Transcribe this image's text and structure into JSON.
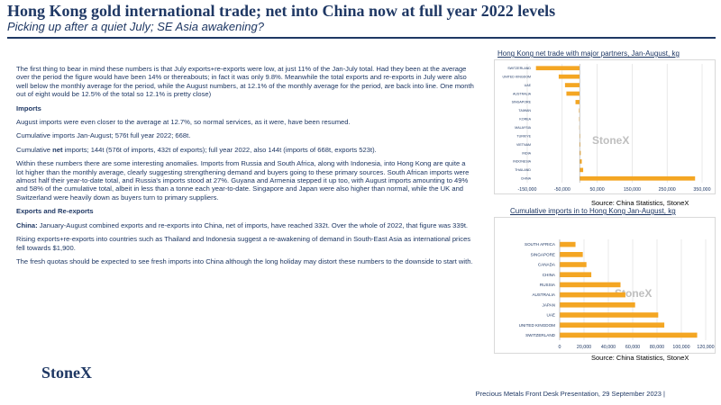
{
  "header": {
    "title": "Hong Kong gold international trade; net into China now at full year 2022 levels",
    "subtitle": "Picking up after a quiet July; SE Asia awakening?"
  },
  "body": {
    "p1": "The first thing to bear in mind these numbers is that July exports+re-exports were low, at just 11% of the Jan-July total.  Had they been at the average over the period the figure would have been 14% or thereabouts; in fact it was only 9.8%.  Meanwhile the total exports and re-exports in July were also well below the monthly average for the period, while the August numbers, at 12.1% of the monthly average for the period, are back into line.  One month out of eight would be 12.5% of the total so 12.1% is pretty close)",
    "imports_heading": "Imports",
    "p2": "August imports were even closer to the average at 12.7%, so normal services, as it were, have been resumed.",
    "p3": "Cumulative imports Jan-August; 576t    full year 2022; 668t.",
    "p4_pre": "Cumulative ",
    "p4_bold": "net",
    "p4_post": " imports; 144t (576t of imports, 432t of exports); full year 2022, also 144t (imports of 668t, exports 523t).",
    "p5": "Within these numbers there are some interesting anomalies.  Imports from Russia and South Africa, along with Indonesia, into Hong Kong are quite a lot higher than the monthly average, clearly suggesting strengthening demand and buyers going to these primary sources.  South African imports were almost half their year-to-date total, and Russia's imports stood at 27%.  Guyana and Armenia stepped it up too, with August imports amounting to 49% and 58% of the cumulative total, albeit in less than a tonne each year-to-date.  Singapore and Japan were also higher than normal, while the UK and Switzerland were heavily down as buyers turn to primary suppliers.",
    "exports_heading": "Exports and Re-exports",
    "p6_bold": "China:",
    "p6_post": "  January-August combined exports and re-exports into China, net of imports, have reached 332t.  Over the whole of 2022, that figure was 339t.",
    "p7": "Rising exports+re-exports into countries such as Thailand and Indonesia suggest a re-awakening of demand in South-East Asia as international prices fell towards $1,900.",
    "p8": "The fresh quotas should be expected to see fresh imports into China although the long holiday may distort these numbers to the downside to start with."
  },
  "brand": "StoneX",
  "footer": "Precious Metals Front Desk Presentation, 29 September 2023 |",
  "chart1": {
    "title": "Hong Kong net trade with major partners, Jan-August, kg",
    "source": "Source: China Statistics, StoneX",
    "watermark": "StoneX",
    "bar_color": "#f4a623"
  },
  "chart2": {
    "title": "Cumulative imports in to Hong Kong Jan-August, kg",
    "source": "Source: China Statistics, StoneX",
    "watermark": "StoneX",
    "bar_color": "#f4a623"
  },
  "chart_data": [
    {
      "type": "bar",
      "orientation": "horizontal",
      "title": "Hong Kong net trade with major partners, Jan-August, kg",
      "categories": [
        "SWITZERLAND",
        "UNITED KINGDOM",
        "UAE",
        "AUSTRALIA",
        "SINGAPORE",
        "TAIWAN",
        "KOREA",
        "MALAYSIA",
        "TURKIYE",
        "VIETNAM",
        "INDIA",
        "INDONESIA",
        "THAILAND",
        "CHINA"
      ],
      "values": [
        -125000,
        -60000,
        -42000,
        -38000,
        -12000,
        -2000,
        -1500,
        -1000,
        1000,
        2000,
        3000,
        6000,
        10000,
        330000
      ],
      "xlim": [
        -150000,
        350000
      ],
      "xticks": [
        -150000,
        -50000,
        50000,
        150000,
        250000,
        350000
      ],
      "xtick_labels": [
        "-150,000",
        "-50,000",
        "50,000",
        "150,000",
        "250,000",
        "350,000"
      ],
      "grid": true
    },
    {
      "type": "bar",
      "orientation": "horizontal",
      "title": "Cumulative imports in to Hong Kong Jan-August, kg",
      "categories": [
        "SOUTH AFRICA",
        "SINGAPORE",
        "CANADA",
        "CHINA",
        "RUSSIA",
        "AUSTRALIA",
        "JAPAN",
        "UAE",
        "UNITED KINGDOM",
        "SWITZERLAND"
      ],
      "values": [
        13000,
        19000,
        22000,
        26000,
        50000,
        54000,
        62000,
        81000,
        86000,
        113000
      ],
      "xlim": [
        0,
        120000
      ],
      "xticks": [
        0,
        20000,
        40000,
        60000,
        80000,
        100000,
        120000
      ],
      "xtick_labels": [
        "0",
        "20,000",
        "40,000",
        "60,000",
        "80,000",
        "100,000",
        "120,000"
      ],
      "grid": true
    }
  ]
}
